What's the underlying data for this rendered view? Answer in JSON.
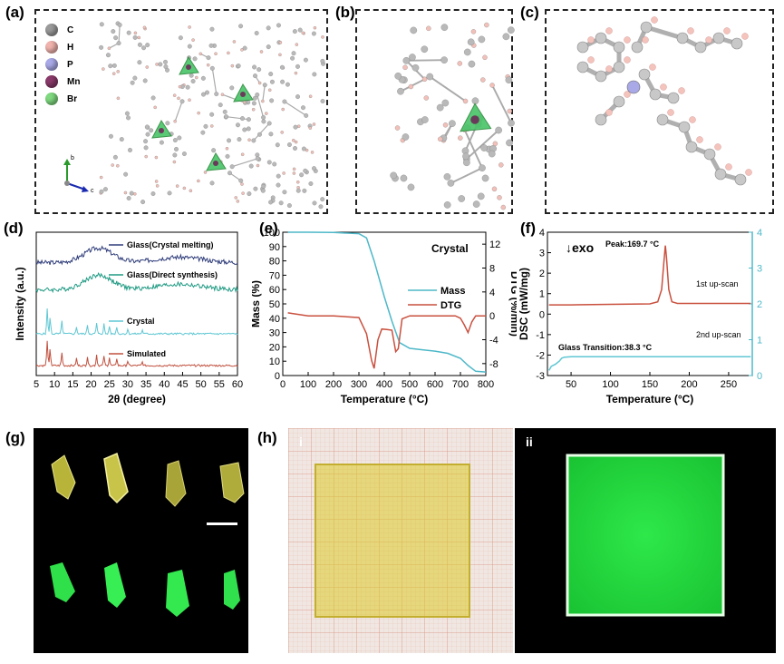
{
  "panels": {
    "a": "(a)",
    "b": "(b)",
    "c": "(c)",
    "d": "(d)",
    "e": "(e)",
    "f": "(f)",
    "g": "(g)",
    "h": "(h)",
    "h_i": "i",
    "h_ii": "ii"
  },
  "legend_a": [
    {
      "label": "C",
      "color": "#9a9a9a"
    },
    {
      "label": "H",
      "color": "#f0b3ad"
    },
    {
      "label": "P",
      "color": "#a9a9e8"
    },
    {
      "label": "Mn",
      "color": "#8a3a6a"
    },
    {
      "label": "Br",
      "color": "#7fd97f"
    }
  ],
  "axes_a": {
    "b": "b",
    "c": "c"
  },
  "chart_data": [
    {
      "panel": "d",
      "type": "line",
      "xlabel": "2θ (degree)",
      "ylabel": "Intensity (a.u.)",
      "xlim": [
        5,
        60
      ],
      "xticks": [
        "5",
        "10",
        "15",
        "20",
        "25",
        "30",
        "35",
        "40",
        "45",
        "50",
        "55",
        "60"
      ],
      "series": [
        {
          "name": "Glass(Crystal melting)",
          "color": "#2f3d7a"
        },
        {
          "name": "Glass(Direct synthesis)",
          "color": "#1f9a83"
        },
        {
          "name": "Crystal",
          "color": "#5fc7d3"
        },
        {
          "name": "Simulated",
          "color": "#c0503e"
        }
      ]
    },
    {
      "panel": "e",
      "type": "line",
      "annotation": "Crystal",
      "xlabel": "Temperature (°C)",
      "ylabel": "Mass (%)",
      "y2label": "DTG (%/min)",
      "xlim": [
        0,
        800
      ],
      "ylim": [
        0,
        100
      ],
      "y2lim": [
        -10,
        14
      ],
      "xticks": [
        "0",
        "100",
        "200",
        "300",
        "400",
        "500",
        "600",
        "700",
        "800"
      ],
      "yticks": [
        "0",
        "10",
        "20",
        "30",
        "40",
        "50",
        "60",
        "70",
        "80",
        "90",
        "100"
      ],
      "y2ticks": [
        "-8",
        "-4",
        "0",
        "4",
        "8",
        "12"
      ],
      "series": [
        {
          "name": "Mass",
          "color": "#4eb8c9",
          "x": [
            20,
            100,
            200,
            300,
            330,
            360,
            400,
            430,
            460,
            500,
            550,
            600,
            650,
            700,
            730,
            760,
            800
          ],
          "y": [
            100,
            100,
            99.8,
            99,
            96,
            80,
            55,
            38,
            23,
            19,
            18,
            17,
            15.5,
            12,
            7,
            3,
            2.5
          ]
        },
        {
          "name": "DTG",
          "color": "#c9503e",
          "x": [
            20,
            100,
            200,
            300,
            330,
            350,
            360,
            375,
            390,
            410,
            430,
            445,
            455,
            470,
            500,
            600,
            680,
            700,
            715,
            730,
            745,
            760,
            800
          ],
          "y": [
            0.5,
            0,
            0,
            -0.3,
            -3,
            -7.5,
            -8.8,
            -4,
            -2.2,
            -2.3,
            -2.4,
            -6,
            -5.5,
            -0.5,
            0,
            0,
            0,
            -0.4,
            -1.5,
            -2.8,
            -1,
            0,
            0
          ]
        }
      ]
    },
    {
      "panel": "f",
      "type": "line",
      "annotations": [
        "↓exo",
        "Peak:169.7 °C",
        "1st up-scan",
        "2nd up-scan",
        "Glass Transition:38.3 °C"
      ],
      "xlabel": "Temperature (°C)",
      "ylabel": "DSC (mW/mg)",
      "xlim": [
        20,
        280
      ],
      "ylim": [
        -3,
        4
      ],
      "y2lim": [
        0,
        4
      ],
      "xticks": [
        "50",
        "100",
        "150",
        "200",
        "250"
      ],
      "yticks": [
        "-3",
        "-2",
        "-1",
        "0",
        "1",
        "2",
        "3",
        "4"
      ],
      "y2ticks": [
        "0",
        "1",
        "2",
        "3",
        "4"
      ],
      "series": [
        {
          "name": "1st up-scan",
          "color": "#c9503e",
          "x": [
            22,
            50,
            100,
            150,
            160,
            165,
            168,
            169.7,
            171,
            174,
            178,
            185,
            200,
            250,
            278
          ],
          "y": [
            0.45,
            0.45,
            0.48,
            0.5,
            0.6,
            1.2,
            2.6,
            3.35,
            2.8,
            1.2,
            0.6,
            0.52,
            0.52,
            0.52,
            0.52
          ]
        },
        {
          "name": "2nd up-scan",
          "color": "#5fc7d3",
          "x": [
            22,
            25,
            30,
            35,
            38.3,
            42,
            50,
            100,
            150,
            200,
            250,
            278
          ],
          "y": [
            -2.75,
            -2.55,
            -2.45,
            -2.3,
            -2.15,
            -2.1,
            -2.08,
            -2.08,
            -2.08,
            -2.08,
            -2.08,
            -2.08
          ]
        }
      ]
    }
  ]
}
